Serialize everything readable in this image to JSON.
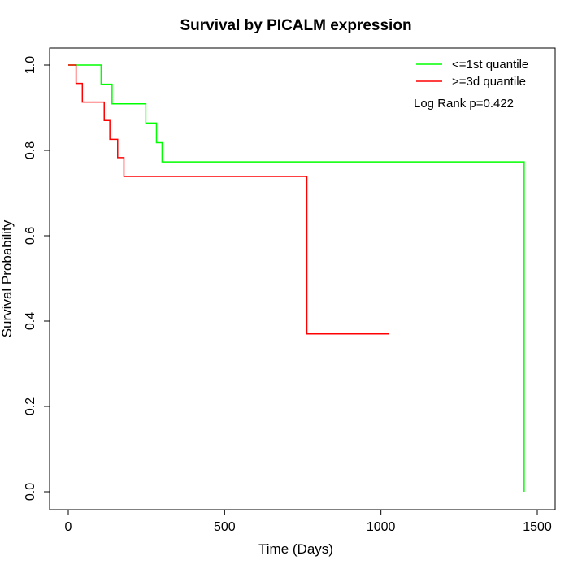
{
  "chart_data": {
    "type": "line",
    "title": "Survival by PICALM expression",
    "xlabel": "Time (Days)",
    "ylabel": "Survival Probability",
    "xlim": [
      0,
      1500
    ],
    "ylim": [
      0,
      1
    ],
    "x_ticks": [
      "0",
      "500",
      "1000",
      "1500"
    ],
    "y_ticks": [
      "0.0",
      "0.2",
      "0.4",
      "0.6",
      "0.8",
      "1.0"
    ],
    "grid": false,
    "legend_position": "top-right",
    "annotation": "Log Rank p=0.422",
    "series": [
      {
        "name": "<=1st quantile",
        "color": "#00ff00",
        "step": true,
        "x": [
          0,
          105,
          140,
          248,
          282,
          300,
          1458,
          1458
        ],
        "y": [
          1.0,
          0.955,
          0.909,
          0.864,
          0.818,
          0.773,
          0.773,
          0.0
        ]
      },
      {
        "name": ">=3d quantile",
        "color": "#ff0000",
        "step": true,
        "x": [
          0,
          25,
          45,
          115,
          133,
          158,
          178,
          763,
          1025
        ],
        "y": [
          1.0,
          0.957,
          0.913,
          0.87,
          0.826,
          0.783,
          0.739,
          0.37,
          0.37
        ]
      }
    ]
  }
}
